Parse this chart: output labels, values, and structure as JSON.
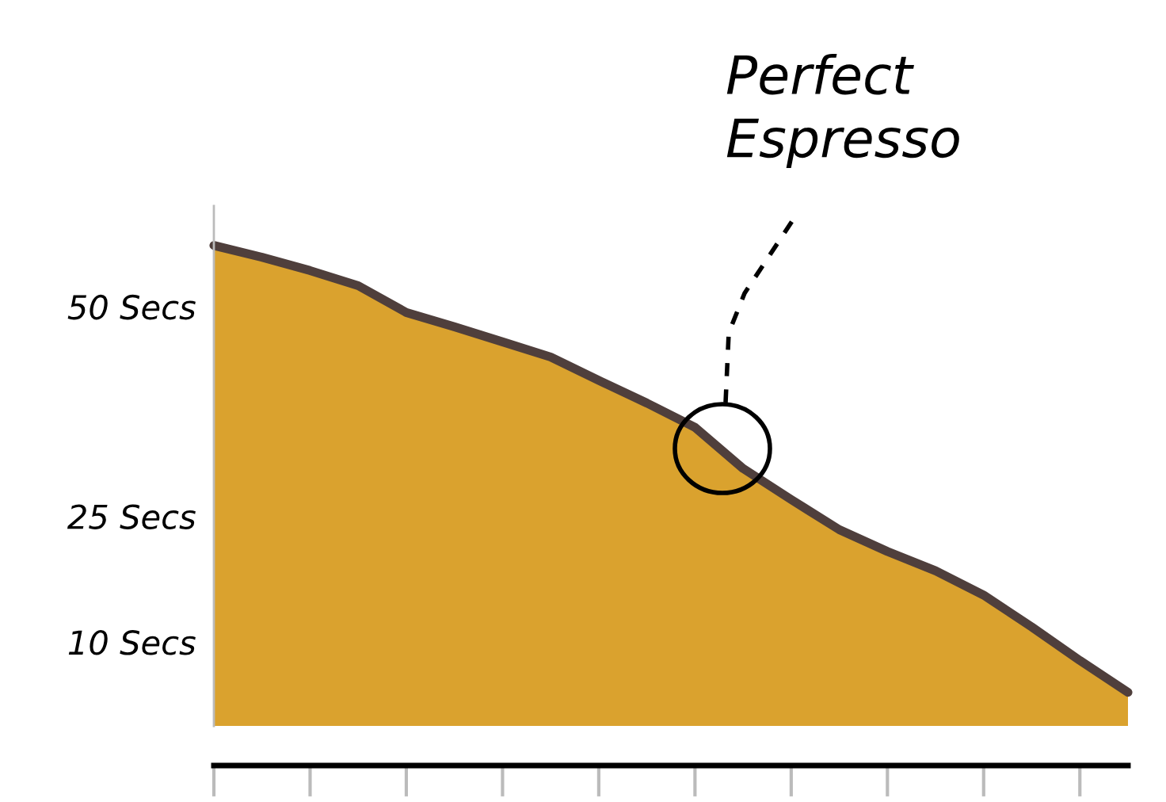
{
  "chart_data": {
    "type": "area",
    "categories": [
      null,
      null,
      null,
      null,
      null,
      null,
      null,
      null,
      null,
      null,
      null,
      null,
      null,
      null,
      null,
      null,
      null,
      null,
      null,
      null
    ],
    "series": [
      {
        "color": "#daa22e",
        "values": [
          57.3,
          55.9,
          54.3,
          52.5,
          49.3,
          47.6,
          45.8,
          44.0,
          41.2,
          38.5,
          35.6,
          30.7,
          27.0,
          23.4,
          20.8,
          18.5,
          15.6,
          11.8,
          7.8,
          4.0
        ]
      }
    ],
    "ylim": [
      0,
      62
    ],
    "yticks": [
      {
        "value": 10,
        "label": "10 Secs"
      },
      {
        "value": 25,
        "label": "25 Secs"
      },
      {
        "value": 50,
        "label": "50 Secs"
      }
    ],
    "tick_labels": "y",
    "grid": false,
    "legend": false,
    "annotations": [
      "Perfect\nEspresso"
    ]
  }
}
